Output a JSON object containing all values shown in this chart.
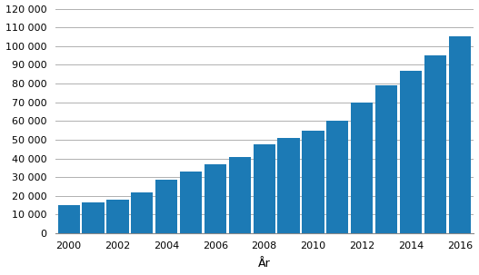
{
  "years": [
    2000,
    2001,
    2002,
    2003,
    2004,
    2005,
    2006,
    2007,
    2008,
    2009,
    2010,
    2011,
    2012,
    2013,
    2014,
    2015,
    2016
  ],
  "values": [
    15000,
    16500,
    18000,
    22000,
    28500,
    33000,
    37000,
    41000,
    47500,
    51000,
    55000,
    60000,
    70000,
    79000,
    87000,
    95000,
    105000
  ],
  "bar_color": "#1c7ab5",
  "xlabel": "År",
  "ylim": [
    0,
    120000
  ],
  "ytick_step": 10000,
  "xtick_labels": [
    "2000",
    "2002",
    "2004",
    "2006",
    "2008",
    "2010",
    "2012",
    "2014",
    "2016"
  ],
  "xtick_positions": [
    2000,
    2002,
    2004,
    2006,
    2008,
    2010,
    2012,
    2014,
    2016
  ],
  "background_color": "#ffffff",
  "grid_color": "#b0b0b0",
  "xlabel_fontsize": 9,
  "tick_fontsize": 8
}
